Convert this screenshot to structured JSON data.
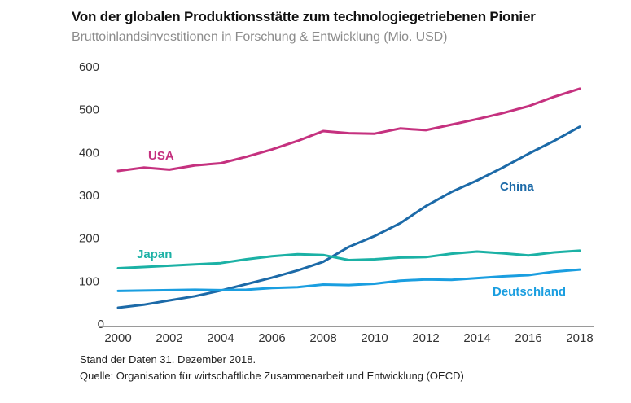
{
  "header": {
    "title": "Von der globalen Produktionsstätte zum technologiegetriebenen Pionier",
    "subtitle": "Bruttoinlandsinvestitionen in Forschung & Entwicklung (Mio. USD)"
  },
  "footer": {
    "note": "Stand der Daten 31. Dezember 2018.",
    "source": "Quelle: Organisation für wirtschaftliche Zusammenarbeit und Entwicklung (OECD)"
  },
  "chart_data": {
    "type": "line",
    "title": "Von der globalen Produktionsstätte zum technologiegetriebenen Pionier",
    "subtitle": "Bruttoinlandsinvestitionen in Forschung & Entwicklung (Mio. USD)",
    "xlabel": "",
    "ylabel": "",
    "x": [
      2000,
      2001,
      2002,
      2003,
      2004,
      2005,
      2006,
      2007,
      2008,
      2009,
      2010,
      2011,
      2012,
      2013,
      2014,
      2015,
      2016,
      2017,
      2018
    ],
    "xlim": [
      2000,
      2018
    ],
    "ylim": [
      0,
      600
    ],
    "xticks": [
      "2000",
      "2002",
      "2004",
      "2006",
      "2008",
      "2010",
      "2012",
      "2014",
      "2016",
      "2018"
    ],
    "yticks": [
      "0",
      "100",
      "200",
      "300",
      "400",
      "500",
      "600"
    ],
    "grid": false,
    "legend": "inline labels",
    "series": [
      {
        "name": "USA",
        "color": "#c5317f",
        "values": [
          357,
          365,
          360,
          370,
          375,
          390,
          407,
          427,
          450,
          445,
          444,
          456,
          452,
          465,
          478,
          492,
          508,
          530,
          549
        ]
      },
      {
        "name": "China",
        "color": "#1c6aa8",
        "values": [
          38,
          45,
          55,
          65,
          78,
          93,
          108,
          125,
          145,
          180,
          205,
          235,
          275,
          308,
          335,
          365,
          397,
          427,
          460
        ]
      },
      {
        "name": "Japan",
        "color": "#1bb1a5",
        "values": [
          130,
          133,
          136,
          139,
          142,
          151,
          158,
          163,
          161,
          149,
          151,
          155,
          156,
          164,
          169,
          165,
          160,
          167,
          171
        ]
      },
      {
        "name": "Deutschland",
        "color": "#1a9ee0",
        "values": [
          77,
          78,
          79,
          80,
          79,
          80,
          84,
          86,
          92,
          91,
          94,
          101,
          104,
          103,
          107,
          111,
          114,
          122,
          127
        ]
      }
    ],
    "annotations": [
      {
        "text": "USA",
        "series": "USA"
      },
      {
        "text": "China",
        "series": "China"
      },
      {
        "text": "Japan",
        "series": "Japan"
      },
      {
        "text": "Deutschland",
        "series": "Deutschland"
      }
    ]
  }
}
